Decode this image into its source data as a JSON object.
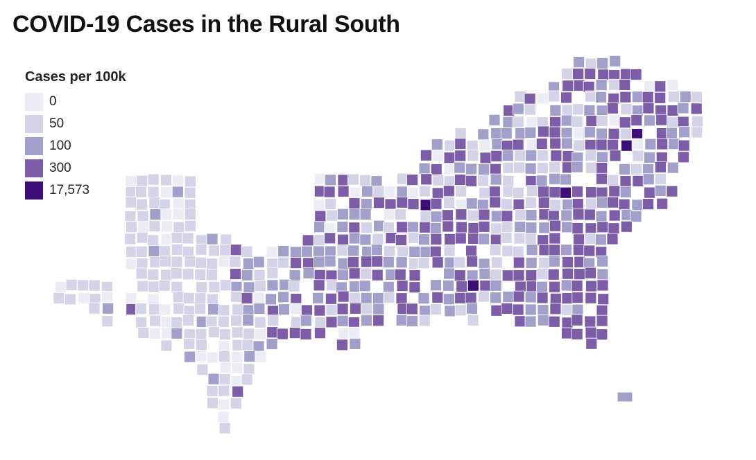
{
  "title": "COVID-19 Cases in the Rural South",
  "legend": {
    "title": "Cases per 100k",
    "items": [
      {
        "label": "0",
        "color": "#ececf5"
      },
      {
        "label": "50",
        "color": "#d4d3e8"
      },
      {
        "label": "100",
        "color": "#a29fcb"
      },
      {
        "label": "300",
        "color": "#7d5ca8"
      },
      {
        "label": "17,573",
        "color": "#3d0d78"
      }
    ]
  },
  "map": {
    "type": "choropleth",
    "unit": "county",
    "measure": "Cases per 100k",
    "region": "Rural South (US)"
  }
}
